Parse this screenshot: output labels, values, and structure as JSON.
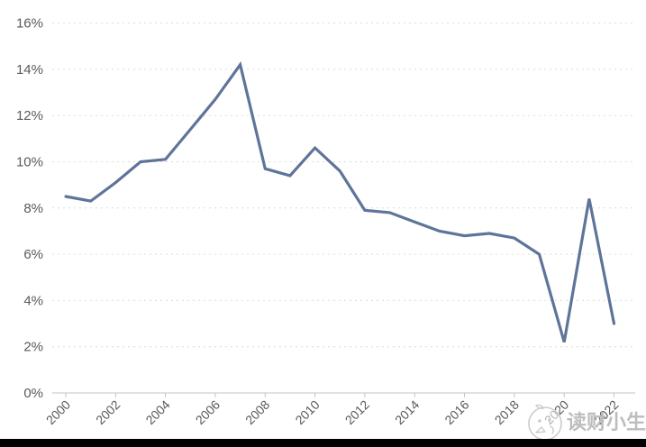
{
  "chart_data": {
    "type": "line",
    "title": "",
    "xlabel": "",
    "ylabel": "",
    "unit": "%",
    "x": [
      2000,
      2001,
      2002,
      2003,
      2004,
      2005,
      2006,
      2007,
      2008,
      2009,
      2010,
      2011,
      2012,
      2013,
      2014,
      2015,
      2016,
      2017,
      2018,
      2019,
      2020,
      2021,
      2022
    ],
    "values": [
      8.5,
      8.3,
      9.1,
      10.0,
      10.1,
      11.4,
      12.7,
      14.2,
      9.7,
      9.4,
      10.6,
      9.6,
      7.9,
      7.8,
      7.4,
      7.0,
      6.8,
      6.9,
      6.7,
      6.0,
      2.2,
      8.4,
      3.0
    ],
    "ylim": [
      0,
      16
    ],
    "ytick_step": 2,
    "ytick_labels": [
      "0%",
      "2%",
      "4%",
      "6%",
      "8%",
      "10%",
      "12%",
      "14%",
      "16%"
    ],
    "xtick_years": [
      2000,
      2002,
      2004,
      2006,
      2008,
      2010,
      2012,
      2014,
      2016,
      2018,
      2020,
      2022
    ],
    "xtick_labels": [
      "2000",
      "2002",
      "2004",
      "2006",
      "2008",
      "2010",
      "2012",
      "2014",
      "2016",
      "2018",
      "2020",
      "2022"
    ],
    "grid": "horizontal-dashed",
    "legend": "none",
    "colors": {
      "line": "#5e7499",
      "grid": "#dcdcdc",
      "axis": "#c3c3c3",
      "tick_text": "#595959",
      "background": "#ffffff"
    }
  },
  "watermark": {
    "text": "读财小生",
    "logo": "chick-logo",
    "color": "#bdbdbd"
  },
  "footer_bar": {
    "color": "#000000"
  }
}
